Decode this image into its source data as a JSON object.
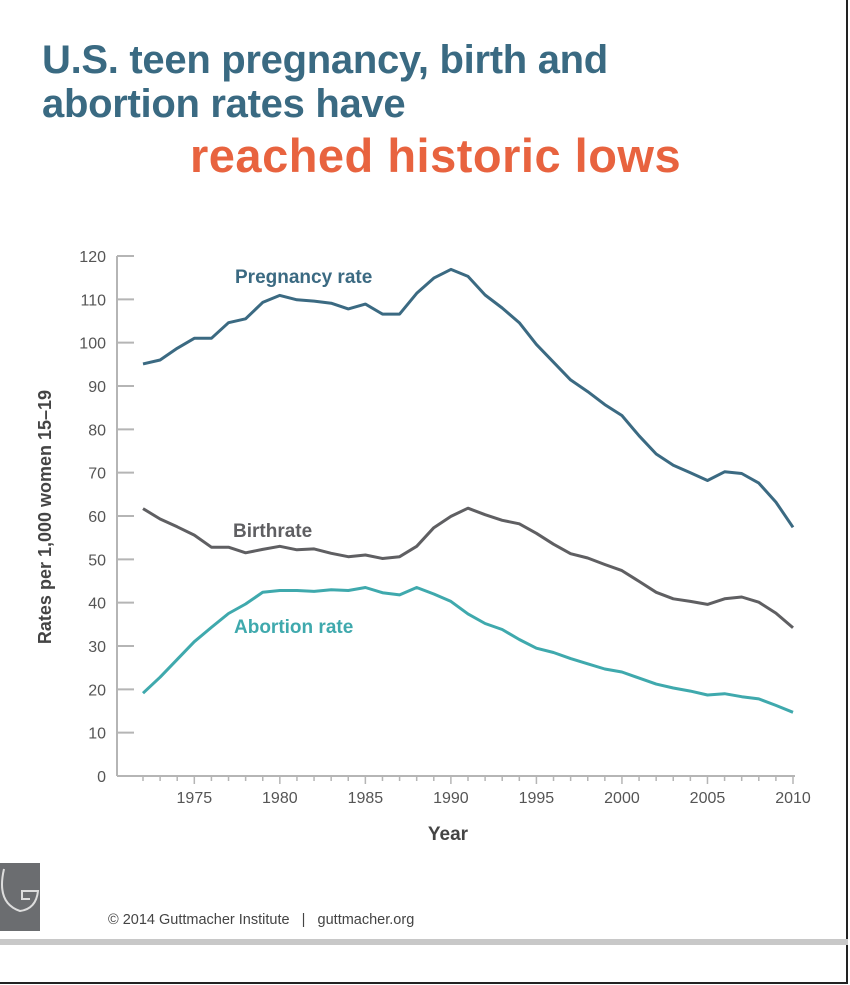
{
  "title_line1": "U.S. teen pregnancy, birth and",
  "title_line2": "abortion rates have",
  "title_highlight": "reached historic lows",
  "footer": {
    "copyright": "© 2014 Guttmacher Institute",
    "separator": "|",
    "url": "guttmacher.org",
    "logo_text": "GUTTMACHER INSTITUTE"
  },
  "colors": {
    "title": "#3a6a82",
    "highlight": "#e8633f",
    "pregnancy": "#3b6a82",
    "birth": "#5f5f62",
    "abortion": "#3fa9ad"
  },
  "chart_data": {
    "type": "line",
    "xlabel": "Year",
    "ylabel": "Rates per 1,000 women 15–19",
    "xlim": [
      1972,
      2010
    ],
    "ylim": [
      0,
      120
    ],
    "x_ticks": [
      1975,
      1980,
      1985,
      1990,
      1995,
      2000,
      2005,
      2010
    ],
    "y_ticks": [
      0,
      10,
      20,
      30,
      40,
      50,
      60,
      70,
      80,
      90,
      100,
      110,
      120
    ],
    "grid": false,
    "x": [
      1972,
      1973,
      1974,
      1975,
      1976,
      1977,
      1978,
      1979,
      1980,
      1981,
      1982,
      1983,
      1984,
      1985,
      1986,
      1987,
      1988,
      1989,
      1990,
      1991,
      1992,
      1993,
      1994,
      1995,
      1996,
      1997,
      1998,
      1999,
      2000,
      2001,
      2002,
      2003,
      2004,
      2005,
      2006,
      2007,
      2008,
      2009,
      2010
    ],
    "series": [
      {
        "name": "Pregnancy rate",
        "color": "#3b6a82",
        "values": [
          95.1,
          96,
          98.7,
          101,
          101,
          104.6,
          105.5,
          109.3,
          110.9,
          109.9,
          109.6,
          109.1,
          107.8,
          108.9,
          106.6,
          106.6,
          111.4,
          114.9,
          116.9,
          115.3,
          111,
          108,
          104.6,
          99.6,
          95.5,
          91.4,
          88.7,
          85.7,
          83.2,
          78.5,
          74.3,
          71.7,
          70,
          68.2,
          70.2,
          69.8,
          67.6,
          63.2,
          57.4
        ]
      },
      {
        "name": "Birthrate",
        "color": "#5f5f62",
        "values": [
          61.7,
          59.3,
          57.5,
          55.6,
          52.8,
          52.8,
          51.5,
          52.3,
          53,
          52.2,
          52.4,
          51.4,
          50.6,
          51,
          50.2,
          50.6,
          53,
          57.3,
          59.9,
          61.8,
          60.3,
          59,
          58.2,
          56,
          53.5,
          51.3,
          50.3,
          48.8,
          47.4,
          44.9,
          42.4,
          40.9,
          40.3,
          39.6,
          40.9,
          41.3,
          40.1,
          37.6,
          34.2
        ]
      },
      {
        "name": "Abortion rate",
        "color": "#3fa9ad",
        "values": [
          19.1,
          22.8,
          26.9,
          31,
          34.3,
          37.5,
          39.7,
          42.4,
          42.8,
          42.8,
          42.6,
          43,
          42.8,
          43.5,
          42.3,
          41.8,
          43.5,
          42,
          40.3,
          37.4,
          35.2,
          33.8,
          31.5,
          29.5,
          28.5,
          27.1,
          25.9,
          24.7,
          24,
          22.6,
          21.2,
          20.3,
          19.6,
          18.7,
          19,
          18.3,
          17.8,
          16.3,
          14.7
        ]
      }
    ]
  }
}
